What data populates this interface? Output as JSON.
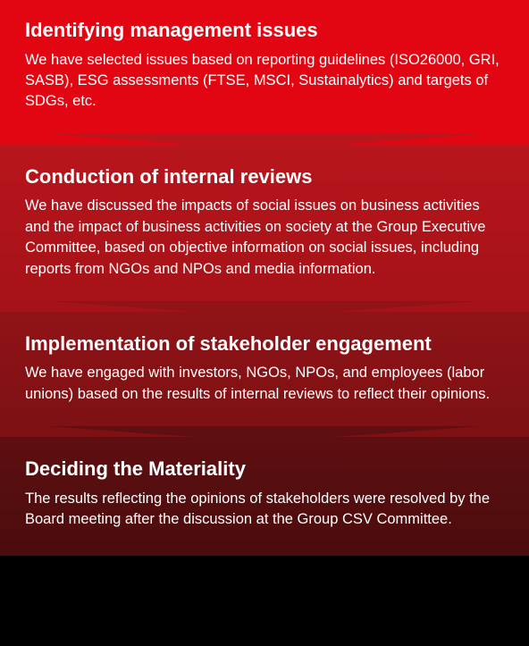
{
  "flow": {
    "type": "flowchart",
    "direction": "vertical",
    "arrow_style": "chevron-down-notch",
    "text_color": "#ffffff",
    "title_fontsize": 22,
    "title_fontweight": 700,
    "body_fontsize": 16.5,
    "body_lineheight": 1.42,
    "steps": [
      {
        "id": "step-1",
        "title": "Identifying management issues",
        "body": "We have selected issues based on reporting guidelines (ISO26000, GRI, SASB), ESG assessments (FTSE, MSCI, Sustainalytics) and targets of SDGs, etc.",
        "bg_from": "#e20612",
        "bg_to": "#e20612"
      },
      {
        "id": "step-2",
        "title": "Conduction of internal reviews",
        "body": "We have discussed the impacts of social issues on business activities and the impact of business activities on society at the Group Executive Committee, based on objective information on social issues, including reports from NGOs and NPOs and media information.",
        "bg_from": "#b8151c",
        "bg_to": "#a51318"
      },
      {
        "id": "step-3",
        "title": "Implementation of stakeholder engagement",
        "body": "We have engaged with investors, NGOs, NPOs, and employees (labor unions) based on the results of internal reviews to reflect their opinions.",
        "bg_from": "#901317",
        "bg_to": "#7d1114"
      },
      {
        "id": "step-4",
        "title": "Deciding the Materiality",
        "body": "The results reflecting the opinions of stakeholders were resolved by the Board meeting after the discussion at the Group CSV Committee.",
        "bg_from": "#5e0f11",
        "bg_to": "#4a0c0d"
      }
    ]
  }
}
